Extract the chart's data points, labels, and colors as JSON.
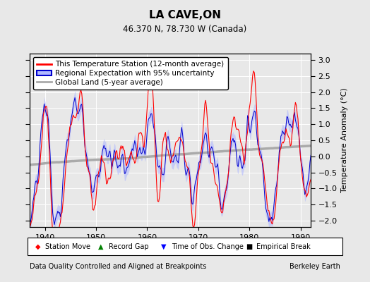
{
  "title": "LA CAVE,ON",
  "subtitle": "46.370 N, 78.730 W (Canada)",
  "ylabel": "Temperature Anomaly (°C)",
  "xlabel_left": "Data Quality Controlled and Aligned at Breakpoints",
  "xlabel_right": "Berkeley Earth",
  "xlim": [
    1937,
    1992
  ],
  "ylim": [
    -2.2,
    3.2
  ],
  "yticks": [
    -2,
    -1.5,
    -1,
    -0.5,
    0,
    0.5,
    1,
    1.5,
    2,
    2.5,
    3
  ],
  "xticks": [
    1940,
    1950,
    1960,
    1970,
    1980,
    1990
  ],
  "background_color": "#e8e8e8",
  "plot_bg_color": "#e8e8e8",
  "grid_color": "#ffffff",
  "station_color": "#ff0000",
  "regional_color": "#0000cc",
  "regional_fill_color": "#b0b8ff",
  "global_color": "#aaaaaa",
  "seed": 123,
  "n_years": 55,
  "start_year": 1937
}
